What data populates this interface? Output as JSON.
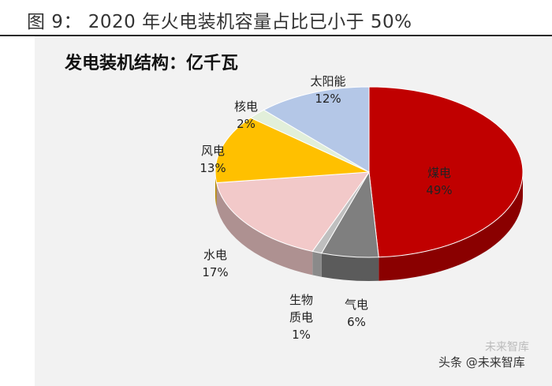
{
  "figure": {
    "title": "图 9： 2020 年火电装机容量占比已小于 50%"
  },
  "chart_data": {
    "type": "pie",
    "title": "发电装机结构：亿千瓦",
    "slices": [
      {
        "name": "煤电",
        "value": 49,
        "label": "49%",
        "color": "#c00000"
      },
      {
        "name": "气电",
        "value": 6,
        "label": "6%",
        "color": "#7f7f7f"
      },
      {
        "name": "生物质电",
        "value": 1,
        "label": "1%",
        "color": "#bfbfbf"
      },
      {
        "name": "水电",
        "value": 17,
        "label": "17%",
        "color": "#f2c9c9"
      },
      {
        "name": "风电",
        "value": 13,
        "label": "13%",
        "color": "#ffc000"
      },
      {
        "name": "核电",
        "value": 2,
        "label": "2%",
        "color": "#e2efda"
      },
      {
        "name": "太阳能",
        "value": 12,
        "label": "12%",
        "color": "#b4c7e7"
      }
    ]
  },
  "labels": {
    "coal_name": "煤电",
    "gas_name": "气电",
    "bio_line1": "生物",
    "bio_line2": "质电",
    "hydro_name": "水电",
    "wind_name": "风电",
    "nuclear_name": "核电",
    "solar_name": "太阳能"
  },
  "watermark": {
    "text": "头条 @未来智库",
    "ghost": "未来智库"
  }
}
